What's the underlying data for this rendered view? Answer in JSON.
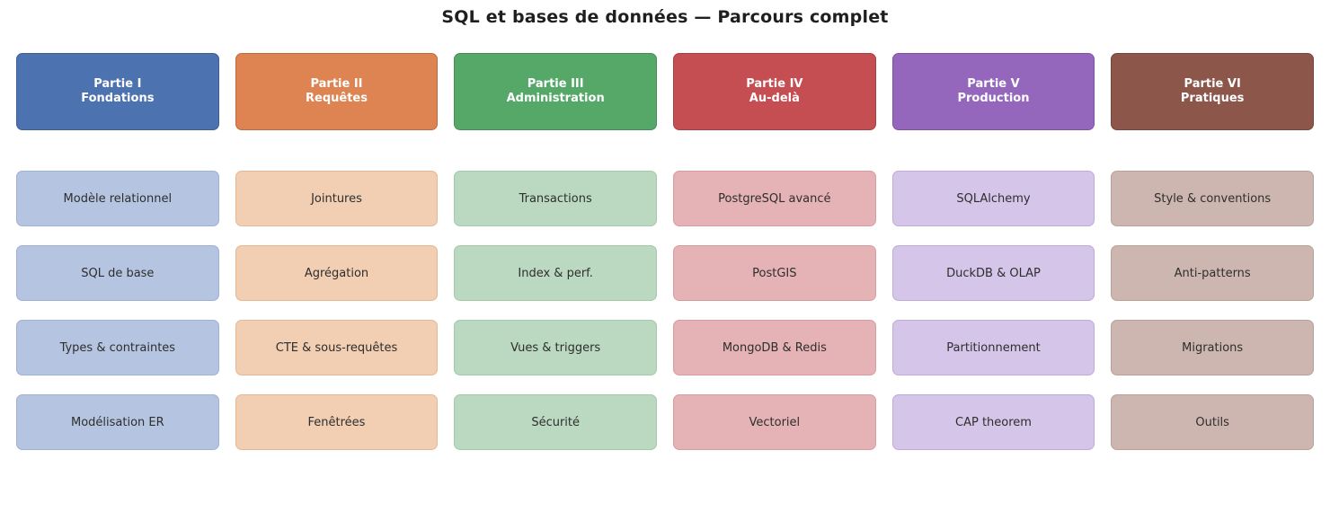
{
  "title": "SQL et bases de données — Parcours complet",
  "text_colors": {
    "title": "#1f1f1f",
    "header_text": "#ffffff",
    "card_text": "#2e2e2e"
  },
  "columns": [
    {
      "id": "fondations",
      "header": {
        "line1": "Partie I",
        "line2": "Fondations"
      },
      "colors": {
        "header_bg": "#4C72B0",
        "header_border": "#3E5F96",
        "card_bg": "#B5C5E1",
        "card_border": "#9DB1D3"
      },
      "cards": [
        "Modèle relationnel",
        "SQL de base",
        "Types & contraintes",
        "Modélisation ER"
      ]
    },
    {
      "id": "requetes",
      "header": {
        "line1": "Partie II",
        "line2": "Requêtes"
      },
      "colors": {
        "header_bg": "#DD8452",
        "header_border": "#C06A3B",
        "card_bg": "#F2CEB3",
        "card_border": "#E3B896"
      },
      "cards": [
        "Jointures",
        "Agrégation",
        "CTE & sous-requêtes",
        "Fenêtrées"
      ]
    },
    {
      "id": "administration",
      "header": {
        "line1": "Partie III",
        "line2": "Administration"
      },
      "colors": {
        "header_bg": "#55A868",
        "header_border": "#448D56",
        "card_bg": "#BBD9C0",
        "card_border": "#A3C9AB"
      },
      "cards": [
        "Transactions",
        "Index & perf.",
        "Vues & triggers",
        "Sécurité"
      ]
    },
    {
      "id": "au-dela",
      "header": {
        "line1": "Partie IV",
        "line2": "Au-delà"
      },
      "colors": {
        "header_bg": "#C44E52",
        "header_border": "#A83E43",
        "card_bg": "#E5B2B5",
        "card_border": "#D69CA0"
      },
      "cards": [
        "PostgreSQL avancé",
        "PostGIS",
        "MongoDB & Redis",
        "Vectoriel"
      ]
    },
    {
      "id": "production",
      "header": {
        "line1": "Partie V",
        "line2": "Production"
      },
      "colors": {
        "header_bg": "#9467BD",
        "header_border": "#7D52A5",
        "card_bg": "#D5C5E8",
        "card_border": "#BFA9DB"
      },
      "cards": [
        "SQLAlchemy",
        "DuckDB & OLAP",
        "Partitionnement",
        "CAP theorem"
      ]
    },
    {
      "id": "pratiques",
      "header": {
        "line1": "Partie VI",
        "line2": "Pratiques"
      },
      "colors": {
        "header_bg": "#8C564B",
        "header_border": "#74463C",
        "card_bg": "#CDB6AF",
        "card_border": "#BCA097"
      },
      "cards": [
        "Style & conventions",
        "Anti-patterns",
        "Migrations",
        "Outils"
      ]
    }
  ]
}
